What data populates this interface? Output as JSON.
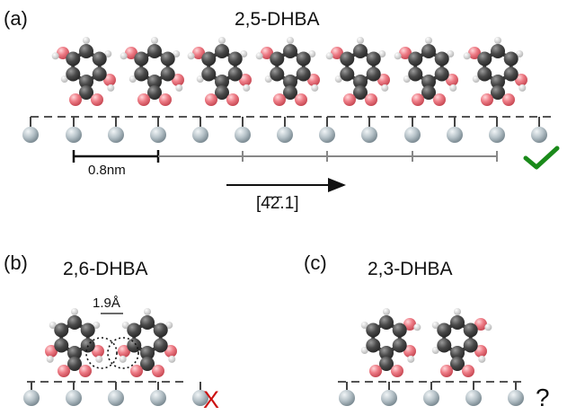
{
  "panels": {
    "a": {
      "label": "(a)",
      "title": "2,5-DHBA",
      "scale_label": "0.8nm",
      "direction_label": "[4̄2̄.1]",
      "status": {
        "symbol": "✔",
        "color": "#1a8a1a",
        "meaning": "check-icon"
      }
    },
    "b": {
      "label": "(b)",
      "title": "2,6-DHBA",
      "distance_label": "1.9Å",
      "status": {
        "symbol": "X",
        "color": "#cc1111",
        "meaning": "cross-icon"
      }
    },
    "c": {
      "label": "(c)",
      "title": "2,3-DHBA",
      "status": {
        "symbol": "?",
        "color": "#111111",
        "meaning": "question-icon"
      }
    }
  },
  "colors": {
    "carbon": "#4a4a4a",
    "oxygen": "#e8707a",
    "hydrogen": "#e0e0e0",
    "substrate": "#b6c2c8"
  }
}
